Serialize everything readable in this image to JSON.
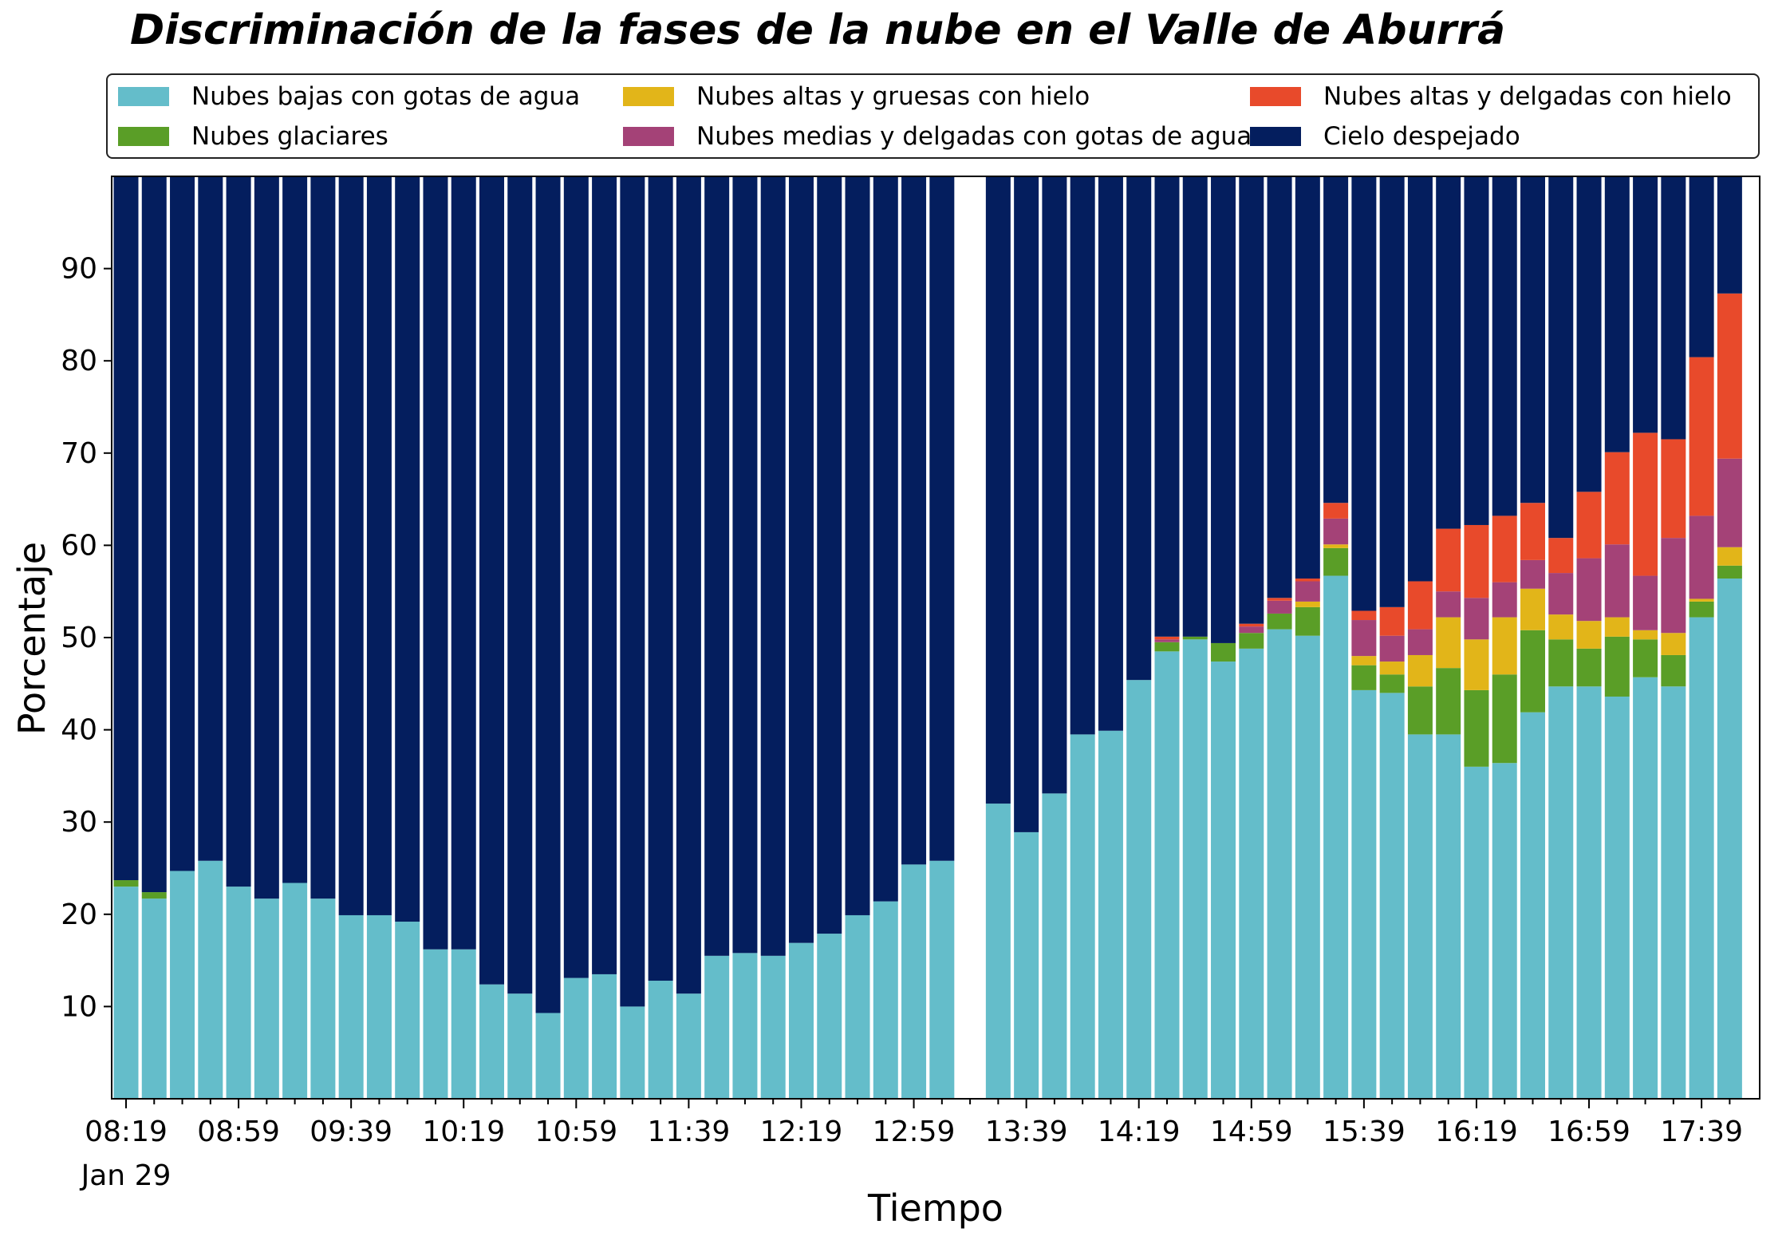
{
  "chart_data": {
    "type": "bar",
    "stacked": true,
    "title": "Discriminación de la fases de la nube en el Valle de Aburrá",
    "xlabel": "Tiempo",
    "ylabel": "Porcentaje",
    "ylim": [
      0,
      100
    ],
    "yticks": [
      10,
      20,
      30,
      40,
      50,
      60,
      70,
      80,
      90
    ],
    "grid": false,
    "legend_position": "top",
    "x_tick_labels": [
      "08:19",
      "08:59",
      "09:39",
      "10:19",
      "10:59",
      "11:39",
      "12:19",
      "12:59",
      "13:39",
      "14:19",
      "14:59",
      "15:39",
      "16:19",
      "16:59",
      "17:39"
    ],
    "x_date_label": "Jan 29",
    "x": [
      "08:19",
      "08:29",
      "08:39",
      "08:49",
      "08:59",
      "09:09",
      "09:19",
      "09:29",
      "09:39",
      "09:49",
      "09:59",
      "10:09",
      "10:19",
      "10:29",
      "10:39",
      "10:49",
      "10:59",
      "11:09",
      "11:19",
      "11:29",
      "11:39",
      "11:49",
      "11:59",
      "12:09",
      "12:19",
      "12:29",
      "12:39",
      "12:49",
      "12:59",
      "13:09",
      "13:19",
      "13:29",
      "13:39",
      "13:49",
      "13:59",
      "14:09",
      "14:19",
      "14:29",
      "14:39",
      "14:49",
      "14:59",
      "15:09",
      "15:19",
      "15:29",
      "15:39",
      "15:49",
      "15:59",
      "16:09",
      "16:19",
      "16:29",
      "16:39",
      "16:49",
      "16:59",
      "17:09",
      "17:19",
      "17:29",
      "17:39",
      "17:49"
    ],
    "series": [
      {
        "name": "Nubes bajas con gotas de agua",
        "color": "#64bdca",
        "values": [
          23.0,
          21.7,
          24.7,
          25.8,
          23.0,
          21.7,
          23.4,
          21.7,
          19.9,
          19.9,
          19.2,
          16.2,
          16.2,
          12.4,
          11.4,
          9.3,
          13.1,
          13.5,
          10.0,
          12.8,
          11.4,
          15.5,
          15.8,
          15.5,
          16.9,
          17.9,
          19.9,
          21.4,
          25.4,
          25.8,
          null,
          32.0,
          28.9,
          33.1,
          39.5,
          39.9,
          45.4,
          48.5,
          49.8,
          47.4,
          48.8,
          50.9,
          50.2,
          56.7,
          44.3,
          44.0,
          39.5,
          39.5,
          36.0,
          36.4,
          41.9,
          44.7,
          44.7,
          43.6,
          45.7,
          44.7,
          52.2,
          56.4
        ]
      },
      {
        "name": "Nubes glaciares",
        "color": "#5a9e27",
        "values": [
          0.7,
          0.7,
          0.0,
          0.0,
          0.0,
          0.0,
          0.0,
          0.0,
          0.0,
          0.0,
          0.0,
          0.0,
          0.0,
          0.0,
          0.0,
          0.0,
          0.0,
          0.0,
          0.0,
          0.0,
          0.0,
          0.0,
          0.0,
          0.0,
          0.0,
          0.0,
          0.0,
          0.0,
          0.0,
          0.0,
          null,
          0.0,
          0.0,
          0.0,
          0.0,
          0.0,
          0.0,
          1.0,
          0.3,
          2.0,
          1.7,
          1.7,
          3.1,
          3.0,
          2.7,
          2.0,
          5.2,
          7.2,
          8.3,
          9.6,
          8.9,
          5.1,
          4.1,
          6.5,
          4.1,
          3.4,
          1.7,
          1.4
        ]
      },
      {
        "name": "Nubes altas y gruesas con hielo",
        "color": "#e2b519",
        "values": [
          0.0,
          0.0,
          0.0,
          0.0,
          0.0,
          0.0,
          0.0,
          0.0,
          0.0,
          0.0,
          0.0,
          0.0,
          0.0,
          0.0,
          0.0,
          0.0,
          0.0,
          0.0,
          0.0,
          0.0,
          0.0,
          0.0,
          0.0,
          0.0,
          0.0,
          0.0,
          0.0,
          0.0,
          0.0,
          0.0,
          null,
          0.0,
          0.0,
          0.0,
          0.0,
          0.0,
          0.0,
          0.0,
          0.0,
          0.0,
          0.0,
          0.0,
          0.6,
          0.4,
          1.0,
          1.4,
          3.4,
          5.5,
          5.5,
          6.2,
          4.5,
          2.7,
          3.0,
          2.1,
          1.0,
          2.4,
          0.3,
          2.0
        ]
      },
      {
        "name": "Nubes medias y delgadas con gotas de agua",
        "color": "#a44277",
        "values": [
          0.0,
          0.0,
          0.0,
          0.0,
          0.0,
          0.0,
          0.0,
          0.0,
          0.0,
          0.0,
          0.0,
          0.0,
          0.0,
          0.0,
          0.0,
          0.0,
          0.0,
          0.0,
          0.0,
          0.0,
          0.0,
          0.0,
          0.0,
          0.0,
          0.0,
          0.0,
          0.0,
          0.0,
          0.0,
          0.0,
          null,
          0.0,
          0.0,
          0.0,
          0.0,
          0.0,
          0.0,
          0.3,
          0.0,
          0.0,
          0.7,
          1.4,
          2.2,
          2.8,
          3.9,
          2.8,
          2.8,
          2.8,
          4.5,
          3.8,
          3.1,
          4.5,
          6.8,
          7.9,
          5.9,
          10.3,
          9.0,
          9.6
        ]
      },
      {
        "name": "Nubes altas y delgadas con hielo",
        "color": "#e84a2b",
        "values": [
          0.0,
          0.0,
          0.0,
          0.0,
          0.0,
          0.0,
          0.0,
          0.0,
          0.0,
          0.0,
          0.0,
          0.0,
          0.0,
          0.0,
          0.0,
          0.0,
          0.0,
          0.0,
          0.0,
          0.0,
          0.0,
          0.0,
          0.0,
          0.0,
          0.0,
          0.0,
          0.0,
          0.0,
          0.0,
          0.0,
          null,
          0.0,
          0.0,
          0.0,
          0.0,
          0.0,
          0.0,
          0.3,
          0.0,
          0.0,
          0.3,
          0.3,
          0.3,
          1.7,
          1.0,
          3.1,
          5.2,
          6.8,
          7.9,
          7.2,
          6.2,
          3.8,
          7.2,
          10.0,
          15.5,
          10.7,
          17.2,
          17.9
        ]
      },
      {
        "name": "Cielo despejado",
        "color": "#041e5e",
        "values": [
          76.3,
          77.6,
          75.3,
          74.2,
          77.0,
          78.3,
          76.6,
          78.3,
          80.1,
          80.1,
          80.8,
          83.8,
          83.8,
          87.6,
          88.6,
          90.7,
          86.9,
          86.5,
          90.0,
          87.2,
          88.6,
          84.5,
          84.2,
          84.5,
          83.1,
          82.1,
          80.1,
          78.6,
          74.6,
          74.2,
          null,
          68.0,
          71.1,
          66.9,
          60.5,
          60.1,
          54.6,
          49.9,
          49.9,
          50.6,
          48.5,
          45.7,
          43.6,
          35.4,
          47.1,
          46.7,
          43.9,
          38.2,
          37.8,
          36.8,
          35.4,
          39.2,
          34.2,
          29.9,
          27.8,
          28.5,
          19.6,
          12.7
        ]
      }
    ]
  }
}
